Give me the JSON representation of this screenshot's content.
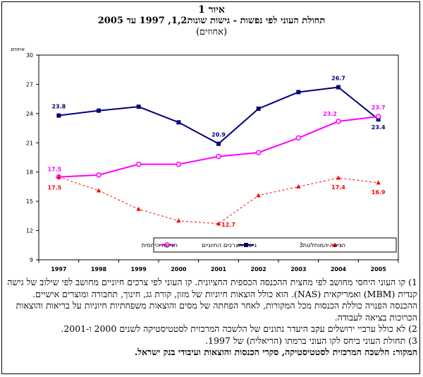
{
  "figure": {
    "label": "איור 1",
    "title": "תחולת העוני לפי נפשות - גישות שונות1,2, 1997 עד 2005",
    "subtitle": "(אחוזים)"
  },
  "chart_data": {
    "type": "line",
    "y_unit_label": "אחוזים",
    "categories": [
      "1997",
      "1998",
      "1999",
      "2000",
      "2001",
      "2002",
      "2003",
      "2004",
      "2005"
    ],
    "ylim": [
      9,
      30
    ],
    "yticks": [
      9,
      12,
      15,
      18,
      21,
      24,
      27,
      30
    ],
    "grid": false,
    "legend": "bottom-right",
    "series": [
      {
        "name": "גישת הצרכים החיוניים",
        "color": "#000080",
        "marker": "square",
        "dash": "solid",
        "values": [
          23.8,
          24.3,
          24.7,
          23.1,
          20.9,
          24.5,
          26.2,
          26.7,
          23.4
        ],
        "labels": [
          {
            "index": 0,
            "text": "23.8"
          },
          {
            "index": 4,
            "text": "20.9"
          },
          {
            "index": 7,
            "text": "26.7"
          },
          {
            "index": 8,
            "text": "23.4"
          }
        ]
      },
      {
        "name": "הגישה היחסית",
        "color": "#ff00ff",
        "marker": "circle",
        "dash": "solid",
        "values": [
          17.5,
          17.7,
          18.8,
          18.8,
          19.6,
          20.0,
          21.5,
          23.2,
          23.7
        ],
        "labels": [
          {
            "index": 0,
            "text": "17.5"
          },
          {
            "index": 7,
            "text": "23.2"
          },
          {
            "index": 8,
            "text": "23.7"
          }
        ]
      },
      {
        "name": "הגישה המוחלטת3",
        "color": "#ff0000",
        "marker": "triangle",
        "dash": "dotted",
        "values": [
          17.5,
          16.1,
          14.2,
          13.0,
          12.7,
          15.6,
          16.5,
          17.4,
          16.9
        ],
        "labels": [
          {
            "index": 0,
            "text": "17.5"
          },
          {
            "index": 4,
            "text": "12.7"
          },
          {
            "index": 7,
            "text": "17.4"
          },
          {
            "index": 8,
            "text": "16.9"
          }
        ]
      }
    ]
  },
  "notes": {
    "n1": "1) קו העוני היחסי מחושב לפי מחצית ההכנסה הכספית החציונית. קו העוני לפי צרכים חיוניים מחושב לפי שילוב של גישה קנדית (MBM) ואמריקאית (NAS). הוא כולל הוצאות חיוניות של מזון, קורת גג, חינוך, תחבורה ומוצרים אישיים. ההכנסה הפנויה כוללת הכנסות מכל המקורות, לאחר הפחתה של מסים והוצאות משפחתיות חיוניות על בריאות והוצאות הכרוכות בציאה לעבודה.",
    "n2": "2) לא כולל ערביי ירושלים עקב היעדר נתונים של הלשכה המרכזית לסטטיסטיקה לשנים 2000 ו-2001.",
    "n3": "3) תחולת העוני ביחס לקו העוני ברמתו (הריאלית) של 1997.",
    "source": "המקור: הלשכה המרכזית לסטטיסטיקה, סקרי הכנסות והוצאות ועיבודי בנק ישראל."
  }
}
